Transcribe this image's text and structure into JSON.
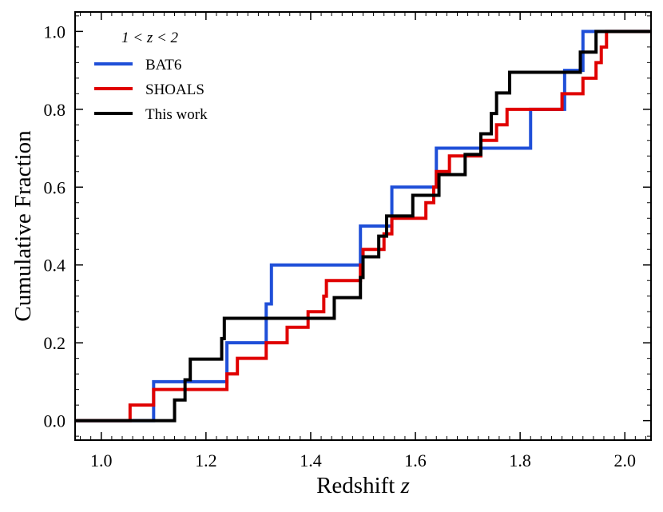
{
  "chart_data": {
    "type": "line",
    "step": true,
    "title": "",
    "xlabel": "Redshift",
    "xlabel_var": "z",
    "ylabel": "Cumulative Fraction",
    "xlim": [
      0.95,
      2.05
    ],
    "ylim": [
      -0.05,
      1.05
    ],
    "xticks": [
      1.0,
      1.2,
      1.4,
      1.6,
      1.8,
      2.0
    ],
    "xtick_labels": [
      "1.0",
      "1.2",
      "1.4",
      "1.6",
      "1.8",
      "2.0"
    ],
    "yticks": [
      0.0,
      0.2,
      0.4,
      0.6,
      0.8,
      1.0
    ],
    "ytick_labels": [
      "0.0",
      "0.2",
      "0.4",
      "0.6",
      "0.8",
      "1.0"
    ],
    "grid": false,
    "legend": {
      "title": "1 < z < 2",
      "placement": "top-left"
    },
    "series": [
      {
        "name": "BAT6",
        "color": "#1f4fd8",
        "steps": [
          [
            0.95,
            0.0
          ],
          [
            1.1,
            0.1
          ],
          [
            1.24,
            0.2
          ],
          [
            1.315,
            0.3
          ],
          [
            1.325,
            0.4
          ],
          [
            1.495,
            0.5
          ],
          [
            1.555,
            0.6
          ],
          [
            1.64,
            0.7
          ],
          [
            1.82,
            0.8
          ],
          [
            1.885,
            0.9
          ],
          [
            1.92,
            1.0
          ],
          [
            2.05,
            1.0
          ]
        ]
      },
      {
        "name": "SHOALS",
        "color": "#e00000",
        "steps": [
          [
            0.95,
            0.0
          ],
          [
            1.055,
            0.04
          ],
          [
            1.1,
            0.08
          ],
          [
            1.24,
            0.12
          ],
          [
            1.26,
            0.16
          ],
          [
            1.315,
            0.2
          ],
          [
            1.355,
            0.24
          ],
          [
            1.395,
            0.28
          ],
          [
            1.425,
            0.32
          ],
          [
            1.43,
            0.36
          ],
          [
            1.495,
            0.4
          ],
          [
            1.5,
            0.44
          ],
          [
            1.54,
            0.48
          ],
          [
            1.555,
            0.52
          ],
          [
            1.62,
            0.56
          ],
          [
            1.635,
            0.6
          ],
          [
            1.64,
            0.64
          ],
          [
            1.665,
            0.68
          ],
          [
            1.725,
            0.72
          ],
          [
            1.755,
            0.76
          ],
          [
            1.775,
            0.8
          ],
          [
            1.88,
            0.84
          ],
          [
            1.92,
            0.88
          ],
          [
            1.945,
            0.92
          ],
          [
            1.955,
            0.96
          ],
          [
            1.965,
            1.0
          ],
          [
            2.05,
            1.0
          ]
        ]
      },
      {
        "name": "This work",
        "color": "#000000",
        "steps": [
          [
            0.95,
            0.0
          ],
          [
            1.14,
            0.053
          ],
          [
            1.16,
            0.105
          ],
          [
            1.17,
            0.158
          ],
          [
            1.23,
            0.211
          ],
          [
            1.235,
            0.263
          ],
          [
            1.445,
            0.316
          ],
          [
            1.495,
            0.368
          ],
          [
            1.5,
            0.421
          ],
          [
            1.53,
            0.474
          ],
          [
            1.545,
            0.526
          ],
          [
            1.595,
            0.579
          ],
          [
            1.645,
            0.632
          ],
          [
            1.695,
            0.684
          ],
          [
            1.725,
            0.737
          ],
          [
            1.745,
            0.789
          ],
          [
            1.755,
            0.842
          ],
          [
            1.78,
            0.895
          ],
          [
            1.915,
            0.947
          ],
          [
            1.945,
            1.0
          ],
          [
            2.05,
            1.0
          ]
        ]
      }
    ]
  }
}
